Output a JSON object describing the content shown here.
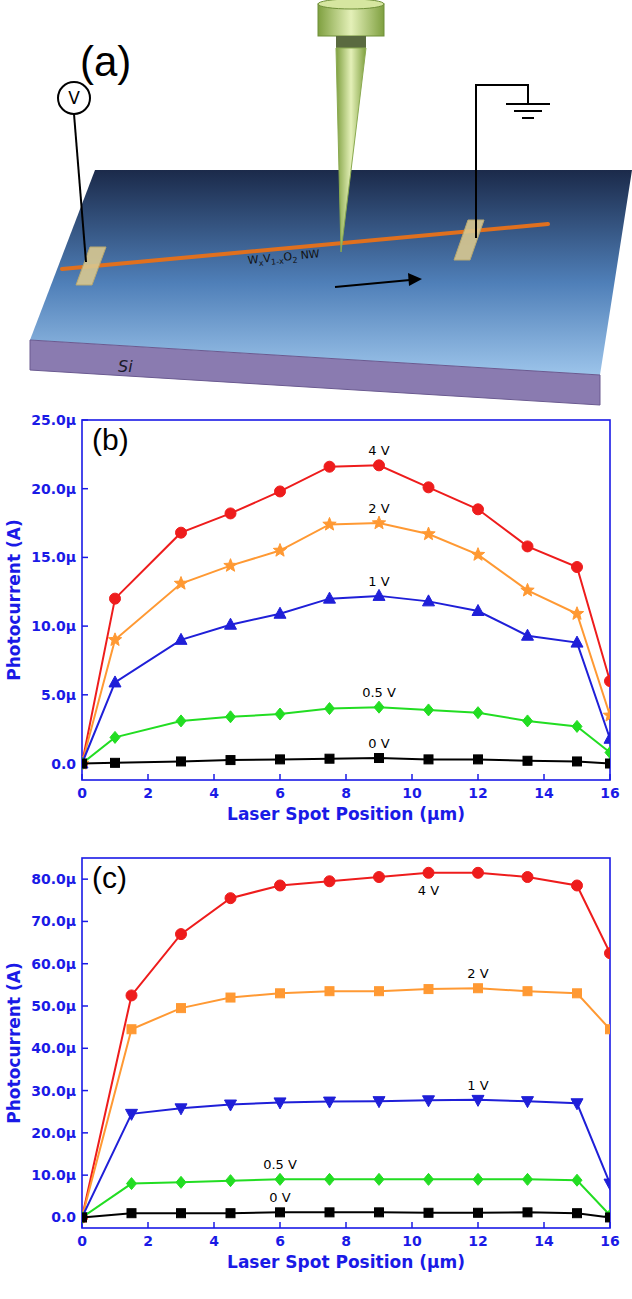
{
  "diagram": {
    "panel": "(a)",
    "voltmeter": "V",
    "substrate": "Si",
    "nanowire": [
      {
        "text": "W"
      },
      {
        "text": "x",
        "sub": true
      },
      {
        "text": "V"
      },
      {
        "text": "1-x",
        "sub": true
      },
      {
        "text": "O"
      },
      {
        "text": "2",
        "sub": true
      },
      {
        "text": " NW"
      }
    ]
  },
  "chart_data": [
    {
      "type": "line",
      "title": "(b)",
      "x_label": "Laser Spot Position (µm)",
      "y_label": "Photocurrent (A)",
      "x": [
        0,
        1,
        3,
        4.5,
        6,
        7.5,
        9,
        10.5,
        12,
        13.5,
        15,
        16
      ],
      "xlim": [
        0,
        16
      ],
      "xticks": [
        0,
        2,
        4,
        6,
        8,
        10,
        12,
        14,
        16
      ],
      "ylim": [
        -1.2e-06,
        2.5e-05
      ],
      "yticks": [
        {
          "value": 0,
          "label": "0.0"
        },
        {
          "value": 5e-06,
          "label": "5.0µ"
        },
        {
          "value": 1e-05,
          "label": "10.0µ"
        },
        {
          "value": 1.5e-05,
          "label": "15.0µ"
        },
        {
          "value": 2e-05,
          "label": "20.0µ"
        },
        {
          "value": 2.5e-05,
          "label": "25.0µ"
        }
      ],
      "grid": false,
      "series": [
        {
          "name": "4 V",
          "color": "#ee1c1c",
          "marker": "circle",
          "values": [
            0,
            1.2e-05,
            1.68e-05,
            1.82e-05,
            1.98e-05,
            2.16e-05,
            2.17e-05,
            2.01e-05,
            1.85e-05,
            1.58e-05,
            1.43e-05,
            6e-06
          ]
        },
        {
          "name": "2 V",
          "color": "#ff9933",
          "marker": "star",
          "values": [
            0,
            9e-06,
            1.31e-05,
            1.44e-05,
            1.55e-05,
            1.74e-05,
            1.75e-05,
            1.67e-05,
            1.52e-05,
            1.26e-05,
            1.09e-05,
            3.5e-06
          ]
        },
        {
          "name": "1 V",
          "color": "#1f1fd8",
          "marker": "triangle",
          "values": [
            0,
            5.9e-06,
            9e-06,
            1.01e-05,
            1.09e-05,
            1.2e-05,
            1.22e-05,
            1.18e-05,
            1.11e-05,
            9.3e-06,
            8.8e-06,
            1.8e-06
          ]
        },
        {
          "name": "0.5 V",
          "color": "#22dd22",
          "marker": "diamond",
          "values": [
            0,
            1.9e-06,
            3.1e-06,
            3.4e-06,
            3.6e-06,
            4e-06,
            4.1e-06,
            3.9e-06,
            3.7e-06,
            3.1e-06,
            2.7e-06,
            8e-07
          ]
        },
        {
          "name": "0 V",
          "color": "#000000",
          "marker": "square",
          "values": [
            0,
            5e-08,
            1.5e-07,
            2.5e-07,
            3e-07,
            3.5e-07,
            4e-07,
            3e-07,
            3e-07,
            2e-07,
            1.5e-07,
            0
          ]
        }
      ]
    },
    {
      "type": "line",
      "title": "(c)",
      "x_label": "Laser Spot Position (µm)",
      "y_label": "Photocurrent (A)",
      "x": [
        0,
        1.5,
        3,
        4.5,
        6,
        7.5,
        9,
        10.5,
        12,
        13.5,
        15,
        16
      ],
      "xlim": [
        0,
        16
      ],
      "xticks": [
        0,
        2,
        4,
        6,
        8,
        10,
        12,
        14,
        16
      ],
      "ylim": [
        -2.5e-06,
        8.5e-05
      ],
      "yticks": [
        {
          "value": 0,
          "label": "0.0"
        },
        {
          "value": 1e-05,
          "label": "10.0µ"
        },
        {
          "value": 2e-05,
          "label": "20.0µ"
        },
        {
          "value": 3e-05,
          "label": "30.0µ"
        },
        {
          "value": 4e-05,
          "label": "40.0µ"
        },
        {
          "value": 5e-05,
          "label": "50.0µ"
        },
        {
          "value": 6e-05,
          "label": "60.0µ"
        },
        {
          "value": 7e-05,
          "label": "70.0µ"
        },
        {
          "value": 8e-05,
          "label": "80.0µ"
        }
      ],
      "grid": false,
      "series": [
        {
          "name": "4 V",
          "color": "#ee1c1c",
          "marker": "circle",
          "values": [
            0,
            5.25e-05,
            6.7e-05,
            7.55e-05,
            7.85e-05,
            7.95e-05,
            8.05e-05,
            8.15e-05,
            8.15e-05,
            8.05e-05,
            7.85e-05,
            6.25e-05
          ]
        },
        {
          "name": "2 V",
          "color": "#ff9933",
          "marker": "square",
          "values": [
            0,
            4.45e-05,
            4.95e-05,
            5.2e-05,
            5.3e-05,
            5.35e-05,
            5.35e-05,
            5.4e-05,
            5.42e-05,
            5.35e-05,
            5.3e-05,
            4.45e-05
          ]
        },
        {
          "name": "1 V",
          "color": "#1f1fd8",
          "marker": "triangle-down",
          "values": [
            0,
            2.45e-05,
            2.58e-05,
            2.67e-05,
            2.72e-05,
            2.74e-05,
            2.75e-05,
            2.77e-05,
            2.78e-05,
            2.75e-05,
            2.7e-05,
            8e-06
          ]
        },
        {
          "name": "0.5 V",
          "color": "#22dd22",
          "marker": "diamond",
          "values": [
            0,
            8e-06,
            8.3e-06,
            8.7e-06,
            9e-06,
            9e-06,
            9e-06,
            9e-06,
            9e-06,
            9e-06,
            8.8e-06,
            5e-07
          ]
        },
        {
          "name": "0 V",
          "color": "#000000",
          "marker": "square",
          "values": [
            0,
            1e-06,
            1e-06,
            1e-06,
            1.2e-06,
            1.2e-06,
            1.2e-06,
            1.1e-06,
            1.1e-06,
            1.2e-06,
            1e-06,
            0
          ]
        }
      ]
    }
  ]
}
